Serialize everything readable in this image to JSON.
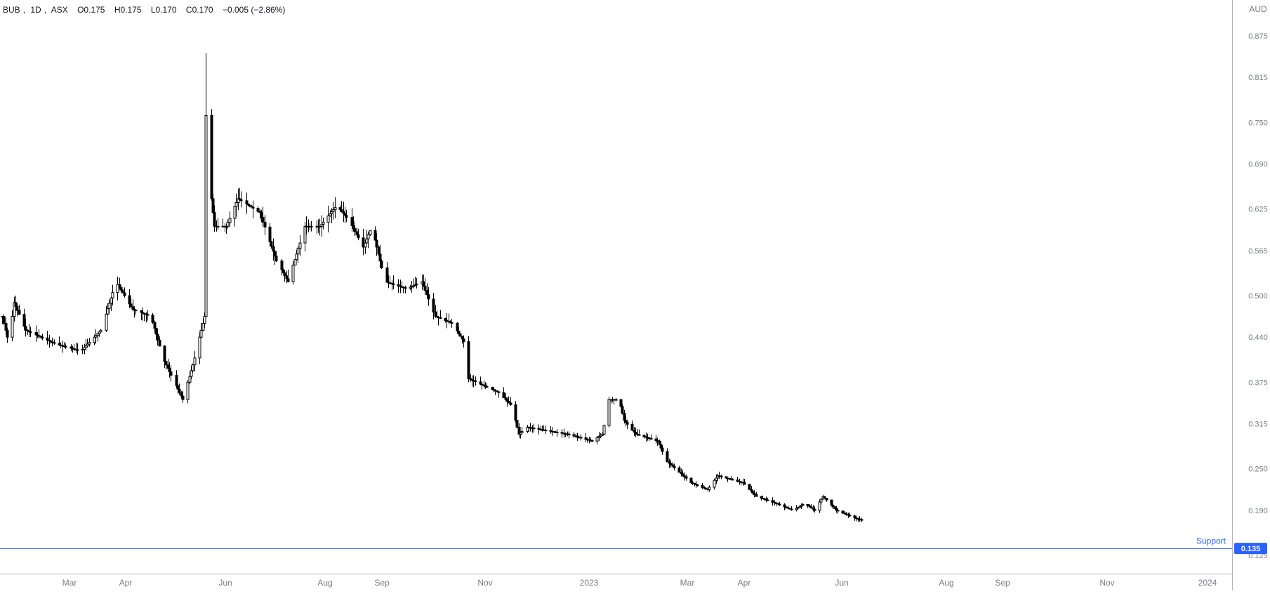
{
  "legend": {
    "symbol": "BUB",
    "interval": "1D",
    "exchange": "ASX",
    "open": "O0.175",
    "high": "H0.175",
    "low": "L0.170",
    "close": "C0.170",
    "change": "−0.005 (−2.86%)"
  },
  "currency": "AUD",
  "colors": {
    "candle": "#000000",
    "support_line": "#2962ff",
    "support_text": "#2962ff",
    "price_badge_bg": "#2962ff",
    "axis_text": "#787b86",
    "axis_border": "#b2b5be"
  },
  "support": {
    "label": "Support",
    "price": 0.135,
    "badge": "0.135"
  },
  "chart_data": {
    "type": "candlestick",
    "title": "BUB, 1D, ASX",
    "y_axis_label": "AUD",
    "y_ticks": [
      "0.875",
      "0.815",
      "0.750",
      "0.690",
      "0.625",
      "0.565",
      "0.500",
      "0.440",
      "0.375",
      "0.315",
      "0.250",
      "0.190",
      "0.125"
    ],
    "x_ticks": [
      "Mar",
      "Apr",
      "Jun",
      "Aug",
      "Sep",
      "Nov",
      "2023",
      "Mar",
      "Apr",
      "Jun",
      "Aug",
      "Sep",
      "Nov",
      "2024"
    ],
    "ylim": [
      0.11,
      0.9
    ],
    "grid": false,
    "anchors": [
      [
        "2022-02-01",
        0.47
      ],
      [
        "2022-02-05",
        0.43
      ],
      [
        "2022-02-08",
        0.49
      ],
      [
        "2022-02-15",
        0.45
      ],
      [
        "2022-03-05",
        0.43
      ],
      [
        "2022-03-20",
        0.42
      ],
      [
        "2022-04-01",
        0.45
      ],
      [
        "2022-04-10",
        0.52
      ],
      [
        "2022-04-20",
        0.48
      ],
      [
        "2022-05-01",
        0.47
      ],
      [
        "2022-05-08",
        0.41
      ],
      [
        "2022-05-20",
        0.35
      ],
      [
        "2022-05-26",
        0.4
      ],
      [
        "2022-06-02",
        0.47
      ],
      [
        "2022-06-03",
        0.76
      ],
      [
        "2022-06-05",
        0.66
      ],
      [
        "2022-06-08",
        0.6
      ],
      [
        "2022-06-15",
        0.6
      ],
      [
        "2022-06-22",
        0.64
      ],
      [
        "2022-07-05",
        0.62
      ],
      [
        "2022-07-15",
        0.55
      ],
      [
        "2022-07-22",
        0.52
      ],
      [
        "2022-08-01",
        0.6
      ],
      [
        "2022-08-10",
        0.6
      ],
      [
        "2022-08-20",
        0.63
      ],
      [
        "2022-08-27",
        0.61
      ],
      [
        "2022-09-05",
        0.57
      ],
      [
        "2022-09-10",
        0.6
      ],
      [
        "2022-09-18",
        0.52
      ],
      [
        "2022-10-01",
        0.51
      ],
      [
        "2022-10-10",
        0.52
      ],
      [
        "2022-10-18",
        0.47
      ],
      [
        "2022-10-28",
        0.46
      ],
      [
        "2022-11-05",
        0.43
      ],
      [
        "2022-11-07",
        0.38
      ],
      [
        "2022-11-25",
        0.36
      ],
      [
        "2022-12-03",
        0.34
      ],
      [
        "2022-12-07",
        0.3
      ],
      [
        "2022-12-12",
        0.31
      ],
      [
        "2023-01-05",
        0.3
      ],
      [
        "2023-01-20",
        0.29
      ],
      [
        "2023-01-26",
        0.3
      ],
      [
        "2023-01-30",
        0.35
      ],
      [
        "2023-02-05",
        0.35
      ],
      [
        "2023-02-08",
        0.32
      ],
      [
        "2023-02-15",
        0.3
      ],
      [
        "2023-02-28",
        0.29
      ],
      [
        "2023-03-06",
        0.26
      ],
      [
        "2023-03-20",
        0.23
      ],
      [
        "2023-03-30",
        0.22
      ],
      [
        "2023-04-05",
        0.24
      ],
      [
        "2023-04-20",
        0.23
      ],
      [
        "2023-04-28",
        0.21
      ],
      [
        "2023-05-10",
        0.2
      ],
      [
        "2023-05-20",
        0.19
      ],
      [
        "2023-05-27",
        0.2
      ],
      [
        "2023-06-02",
        0.19
      ],
      [
        "2023-06-07",
        0.21
      ],
      [
        "2023-06-15",
        0.19
      ],
      [
        "2023-06-25",
        0.18
      ],
      [
        "2023-07-01",
        0.175
      ]
    ]
  }
}
